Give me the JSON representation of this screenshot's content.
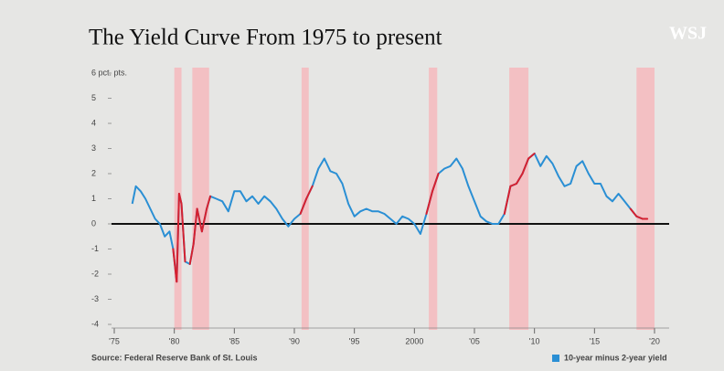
{
  "chart_data": {
    "type": "line",
    "title": "The Yield Curve From 1975 to present",
    "source": "Source: Federal Reserve Bank of St. Louis",
    "logo": "WSJ",
    "xlim": [
      1975,
      2020
    ],
    "xticks": [
      {
        "value": 1975,
        "label": "'75"
      },
      {
        "value": 1980,
        "label": "'80"
      },
      {
        "value": 1985,
        "label": "'85"
      },
      {
        "value": 1990,
        "label": "'90"
      },
      {
        "value": 1995,
        "label": "'95"
      },
      {
        "value": 2000,
        "label": "2000"
      },
      {
        "value": 2005,
        "label": "'05"
      },
      {
        "value": 2010,
        "label": "'10"
      },
      {
        "value": 2015,
        "label": "'15"
      },
      {
        "value": 2020,
        "label": "'20"
      }
    ],
    "ylim": [
      -4,
      6
    ],
    "yticks": [
      -4,
      -3,
      -2,
      -1,
      0,
      1,
      2,
      3,
      4,
      5,
      {
        "value": 6,
        "label": "6 pct. pts."
      }
    ],
    "grid": false,
    "shaded_ranges": [
      [
        1980.0,
        1980.6
      ],
      [
        1981.5,
        1982.9
      ],
      [
        1990.6,
        1991.2
      ],
      [
        2001.2,
        2001.9
      ],
      [
        2007.9,
        2009.5
      ],
      [
        2018.5,
        2020.0
      ]
    ],
    "shade_color": "#f7b3b8",
    "highlight_color": "#d6202f",
    "legend": "bottom-right",
    "x": [
      1976.5,
      1976.8,
      1977.2,
      1977.6,
      1978.0,
      1978.4,
      1978.8,
      1979.2,
      1979.6,
      1979.9,
      1980.2,
      1980.4,
      1980.6,
      1980.9,
      1981.3,
      1981.6,
      1981.9,
      1982.3,
      1982.7,
      1983.0,
      1983.5,
      1984.0,
      1984.5,
      1985.0,
      1985.5,
      1986.0,
      1986.5,
      1987.0,
      1987.5,
      1988.0,
      1988.5,
      1989.0,
      1989.5,
      1990.0,
      1990.5,
      1991.0,
      1991.5,
      1992.0,
      1992.5,
      1993.0,
      1993.5,
      1994.0,
      1994.5,
      1995.0,
      1995.5,
      1996.0,
      1996.5,
      1997.0,
      1997.5,
      1998.0,
      1998.5,
      1999.0,
      1999.5,
      2000.0,
      2000.5,
      2001.0,
      2001.5,
      2002.0,
      2002.5,
      2003.0,
      2003.5,
      2004.0,
      2004.5,
      2005.0,
      2005.5,
      2006.0,
      2006.5,
      2007.0,
      2007.5,
      2008.0,
      2008.5,
      2009.0,
      2009.5,
      2010.0,
      2010.5,
      2011.0,
      2011.5,
      2012.0,
      2012.5,
      2013.0,
      2013.5,
      2014.0,
      2014.5,
      2015.0,
      2015.5,
      2016.0,
      2016.5,
      2017.0,
      2017.5,
      2018.0,
      2018.5,
      2019.0,
      2019.4
    ],
    "series": [
      {
        "name": "10-year minus 2-year yield",
        "color": "#2a8fd4",
        "values": [
          0.8,
          1.5,
          1.3,
          1.0,
          0.6,
          0.2,
          0.0,
          -0.5,
          -0.3,
          -1.0,
          -2.3,
          1.2,
          0.8,
          -1.5,
          -1.6,
          -0.8,
          0.6,
          -0.3,
          0.6,
          1.1,
          1.0,
          0.9,
          0.5,
          1.3,
          1.3,
          0.9,
          1.1,
          0.8,
          1.1,
          0.9,
          0.6,
          0.2,
          -0.1,
          0.2,
          0.4,
          1.0,
          1.5,
          2.2,
          2.6,
          2.1,
          2.0,
          1.6,
          0.8,
          0.3,
          0.5,
          0.6,
          0.5,
          0.5,
          0.4,
          0.2,
          0.0,
          0.3,
          0.2,
          0.0,
          -0.4,
          0.4,
          1.3,
          2.0,
          2.2,
          2.3,
          2.6,
          2.2,
          1.5,
          0.9,
          0.3,
          0.1,
          0.0,
          0.0,
          0.4,
          1.5,
          1.6,
          2.0,
          2.6,
          2.8,
          2.3,
          2.7,
          2.4,
          1.9,
          1.5,
          1.6,
          2.3,
          2.5,
          2.0,
          1.6,
          1.6,
          1.1,
          0.9,
          1.2,
          0.9,
          0.6,
          0.3,
          0.2,
          0.2
        ]
      }
    ]
  }
}
